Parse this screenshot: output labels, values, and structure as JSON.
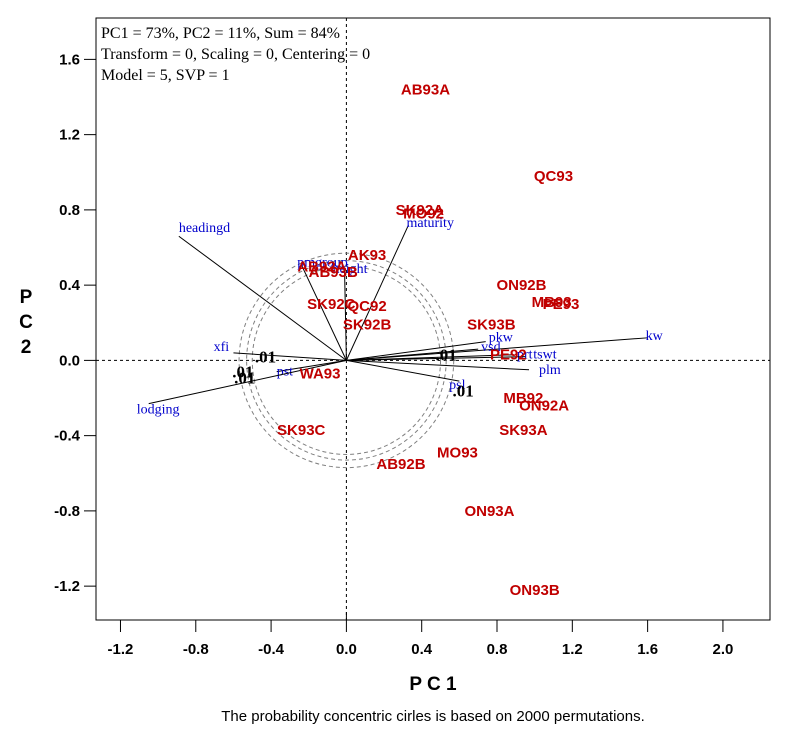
{
  "chart_data": {
    "type": "scatter",
    "subtype": "biplot",
    "title": "",
    "info_lines": [
      "PC1 = 73%, PC2 = 11%, Sum = 84%",
      "Transform = 0, Scaling = 0, Centering = 0",
      "Model = 5, SVP = 1"
    ],
    "xlabel": "P C 1",
    "ylabel": "P C 2",
    "xlim": [
      -1.33,
      2.25
    ],
    "ylim": [
      -1.38,
      1.82
    ],
    "xticks": [
      -1.2,
      -0.8,
      -0.4,
      0.0,
      0.4,
      0.8,
      1.2,
      1.6,
      2.0
    ],
    "xtick_labels": [
      "-1.2",
      "-0.8",
      "-0.4",
      "0.0",
      "0.4",
      "0.8",
      "1.2",
      "1.6",
      "2.0"
    ],
    "yticks": [
      -1.2,
      -0.8,
      -0.4,
      0.0,
      0.4,
      0.8,
      1.2,
      1.6
    ],
    "ytick_labels": [
      "-1.2",
      "-0.8",
      "-0.4",
      "0.0",
      "0.4",
      "0.8",
      "1.2",
      "1.6"
    ],
    "grid": false,
    "reference_lines": {
      "x": 0,
      "y": 0,
      "style": "dashed"
    },
    "caption": "The probability concentric cirles is based on 2000 permutations.",
    "points": {
      "name": "environments",
      "color": "#c00000",
      "items": [
        {
          "label": "AB93A",
          "x": 0.42,
          "y": 1.44
        },
        {
          "label": "QC93",
          "x": 1.1,
          "y": 0.98
        },
        {
          "label": "SK92A",
          "x": 0.39,
          "y": 0.8
        },
        {
          "label": "MO92",
          "x": 0.41,
          "y": 0.78
        },
        {
          "label": "AK93",
          "x": 0.11,
          "y": 0.56
        },
        {
          "label": "AB92A",
          "x": -0.13,
          "y": 0.5
        },
        {
          "label": "AB93B",
          "x": -0.07,
          "y": 0.47
        },
        {
          "label": "ON92B",
          "x": 0.93,
          "y": 0.4
        },
        {
          "label": "MB93",
          "x": 1.09,
          "y": 0.31
        },
        {
          "label": "PE93",
          "x": 1.14,
          "y": 0.3
        },
        {
          "label": "SK92C",
          "x": -0.08,
          "y": 0.3
        },
        {
          "label": "QC92",
          "x": 0.11,
          "y": 0.29
        },
        {
          "label": "SK92B",
          "x": 0.11,
          "y": 0.19
        },
        {
          "label": "SK93B",
          "x": 0.77,
          "y": 0.19
        },
        {
          "label": "PE92",
          "x": 0.86,
          "y": 0.03
        },
        {
          "label": "WA93",
          "x": -0.14,
          "y": -0.07
        },
        {
          "label": "MB92",
          "x": 0.94,
          "y": -0.2
        },
        {
          "label": "ON92A",
          "x": 1.05,
          "y": -0.24
        },
        {
          "label": "SK93A",
          "x": 0.94,
          "y": -0.37
        },
        {
          "label": "SK93C",
          "x": -0.24,
          "y": -0.37
        },
        {
          "label": "MO93",
          "x": 0.59,
          "y": -0.49
        },
        {
          "label": "AB92B",
          "x": 0.29,
          "y": -0.55
        },
        {
          "label": "ON93A",
          "x": 0.76,
          "y": -0.8
        },
        {
          "label": "ON93B",
          "x": 1.0,
          "y": -1.22
        }
      ]
    },
    "vectors": {
      "name": "traits",
      "color": "#0000cc",
      "items": [
        {
          "label": "kw",
          "x": 1.6,
          "y": 0.12
        },
        {
          "label": "headingd",
          "x": -0.89,
          "y": 0.66
        },
        {
          "label": "maturity",
          "x": 0.33,
          "y": 0.72
        },
        {
          "label": "pmgroup",
          "x": -0.24,
          "y": 0.51
        },
        {
          "label": "height",
          "x": -0.01,
          "y": 0.49
        },
        {
          "label": "pkw",
          "x": 0.74,
          "y": 0.1
        },
        {
          "label": "vsd",
          "x": 0.7,
          "y": 0.06
        },
        {
          "label": "prt",
          "x": 0.89,
          "y": 0.03
        },
        {
          "label": "tswt",
          "x": 0.95,
          "y": 0.02
        },
        {
          "label": "plm",
          "x": 0.97,
          "y": -0.05
        },
        {
          "label": "psl",
          "x": 0.6,
          "y": -0.11
        },
        {
          "label": "xfi",
          "x": -0.6,
          "y": 0.04
        },
        {
          "label": "pst",
          "x": -0.37,
          "y": -0.06
        },
        {
          "label": "lodging",
          "x": -1.05,
          "y": -0.23
        }
      ]
    },
    "probability_circles": {
      "radii": [
        0.5,
        0.53,
        0.57
      ],
      "style": "dashed",
      "color": "#808080"
    },
    "significance_labels": [
      {
        "label": ".01",
        "x": 0.53,
        "y": 0.03
      },
      {
        "label": ".01",
        "x": 0.62,
        "y": -0.16
      },
      {
        "label": ".01",
        "x": -0.43,
        "y": 0.02
      },
      {
        "label": ".01",
        "x": -0.55,
        "y": -0.06
      },
      {
        "label": ".01",
        "x": -0.54,
        "y": -0.09
      }
    ]
  }
}
